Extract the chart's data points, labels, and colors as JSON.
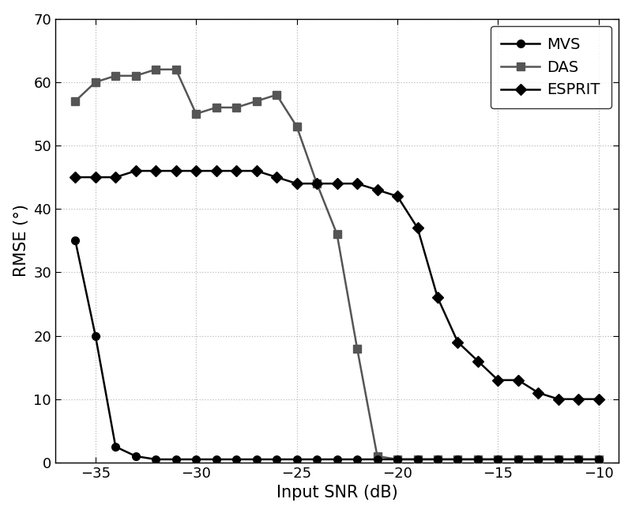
{
  "snr_values": [
    -36,
    -35,
    -34,
    -33,
    -32,
    -31,
    -30,
    -29,
    -28,
    -27,
    -26,
    -25,
    -24,
    -23,
    -22,
    -21,
    -20,
    -19,
    -18,
    -17,
    -16,
    -15,
    -14,
    -13,
    -12,
    -11,
    -10
  ],
  "mvs": [
    35,
    20,
    2.5,
    1.0,
    0.5,
    0.5,
    0.5,
    0.5,
    0.5,
    0.5,
    0.5,
    0.5,
    0.5,
    0.5,
    0.5,
    0.5,
    0.5,
    0.5,
    0.5,
    0.5,
    0.5,
    0.5,
    0.5,
    0.5,
    0.5,
    0.5,
    0.5
  ],
  "das": [
    57,
    60,
    61,
    61,
    62,
    62,
    55,
    56,
    56,
    57,
    58,
    53,
    44,
    36,
    18,
    1,
    0.5,
    0.5,
    0.5,
    0.5,
    0.5,
    0.5,
    0.5,
    0.5,
    0.5,
    0.5,
    0.5
  ],
  "esprit": [
    45,
    45,
    45,
    46,
    46,
    46,
    46,
    46,
    46,
    46,
    45,
    44,
    44,
    44,
    44,
    43,
    42,
    37,
    26,
    19,
    16,
    13,
    13,
    11,
    10,
    10,
    10
  ],
  "mvs_color": "#000000",
  "das_color": "#555555",
  "esprit_color": "#000000",
  "xlabel": "Input SNR (dB)",
  "ylabel": "RMSE (°)",
  "xlim": [
    -37,
    -9
  ],
  "ylim": [
    0,
    70
  ],
  "xticks": [
    -35,
    -30,
    -25,
    -20,
    -15,
    -10
  ],
  "yticks": [
    0,
    10,
    20,
    30,
    40,
    50,
    60,
    70
  ],
  "legend_labels": [
    "MVS",
    "DAS",
    "ESPRIT"
  ],
  "grid_color": "#bbbbbb",
  "background_color": "#ffffff",
  "label_fontsize": 15,
  "tick_fontsize": 13,
  "legend_fontsize": 14,
  "linewidth": 1.8,
  "markersize": 7,
  "fig_width": 8.0,
  "fig_height": 6.5,
  "dpi": 100
}
